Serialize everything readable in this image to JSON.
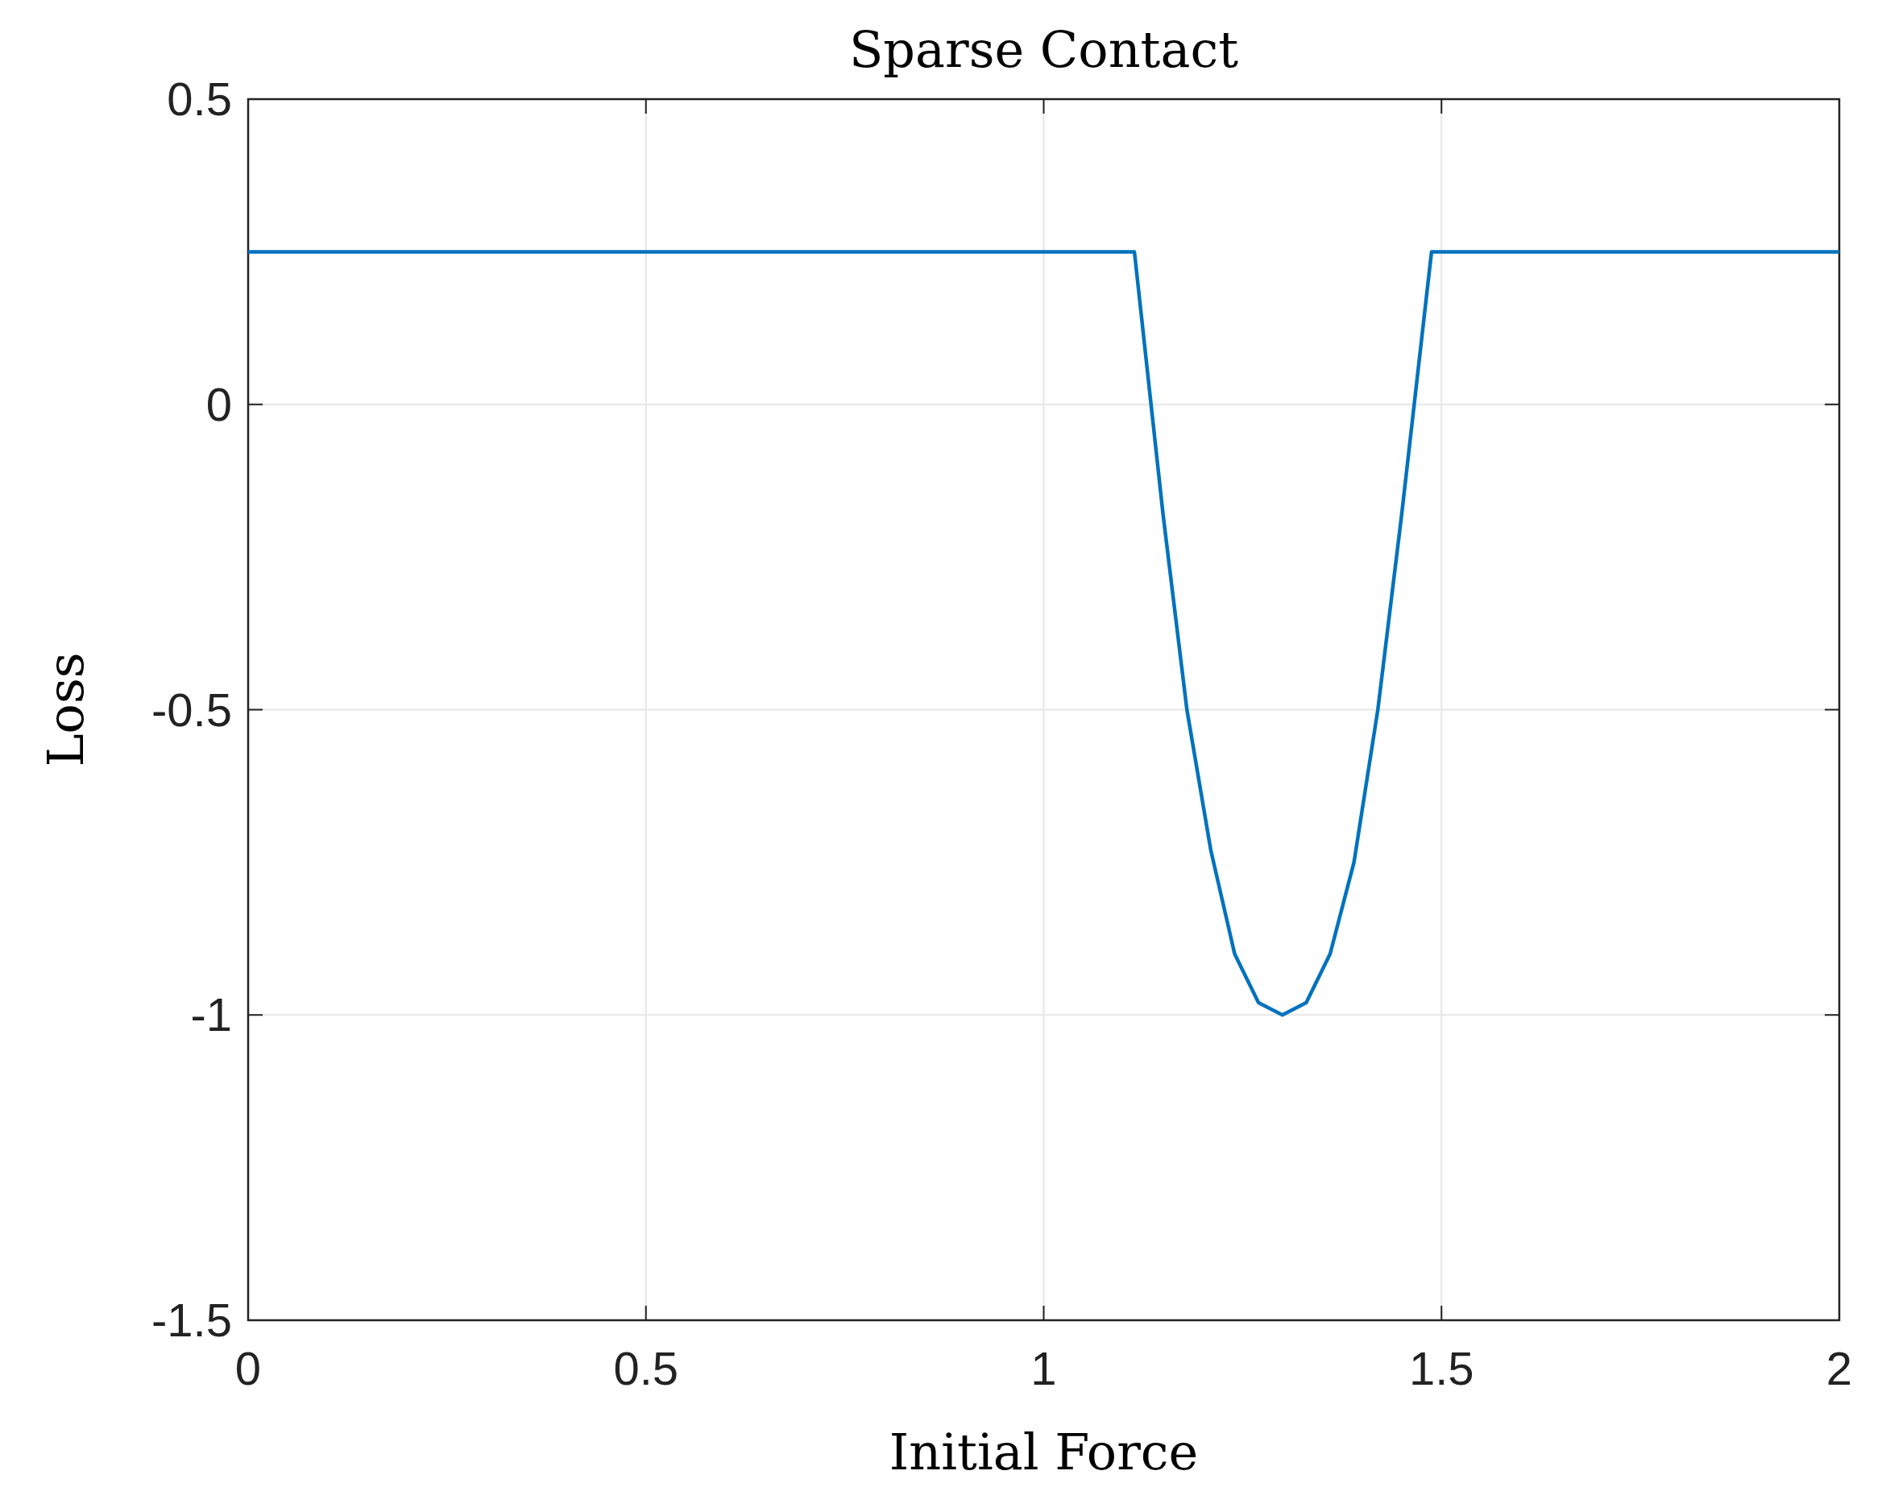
{
  "chart_data": {
    "type": "line",
    "title": "Sparse Contact",
    "xlabel": "Initial Force",
    "ylabel": "Loss",
    "xlim": [
      0,
      2
    ],
    "ylim": [
      -1.5,
      0.5
    ],
    "xticks": [
      0,
      0.5,
      1,
      1.5,
      2
    ],
    "yticks": [
      -1.5,
      -1,
      -0.5,
      0,
      0.5
    ],
    "grid": true,
    "series": [
      {
        "color": "#0072bd",
        "x": [
          0,
          1.114,
          1.15,
          1.18,
          1.21,
          1.24,
          1.27,
          1.3,
          1.33,
          1.36,
          1.39,
          1.42,
          1.45,
          1.4875,
          2
        ],
        "values": [
          0.25,
          0.25,
          -0.18,
          -0.5,
          -0.73,
          -0.9,
          -0.98,
          -1,
          -0.98,
          -0.9,
          -0.75,
          -0.5,
          -0.18,
          0.25,
          0.25
        ]
      }
    ]
  }
}
